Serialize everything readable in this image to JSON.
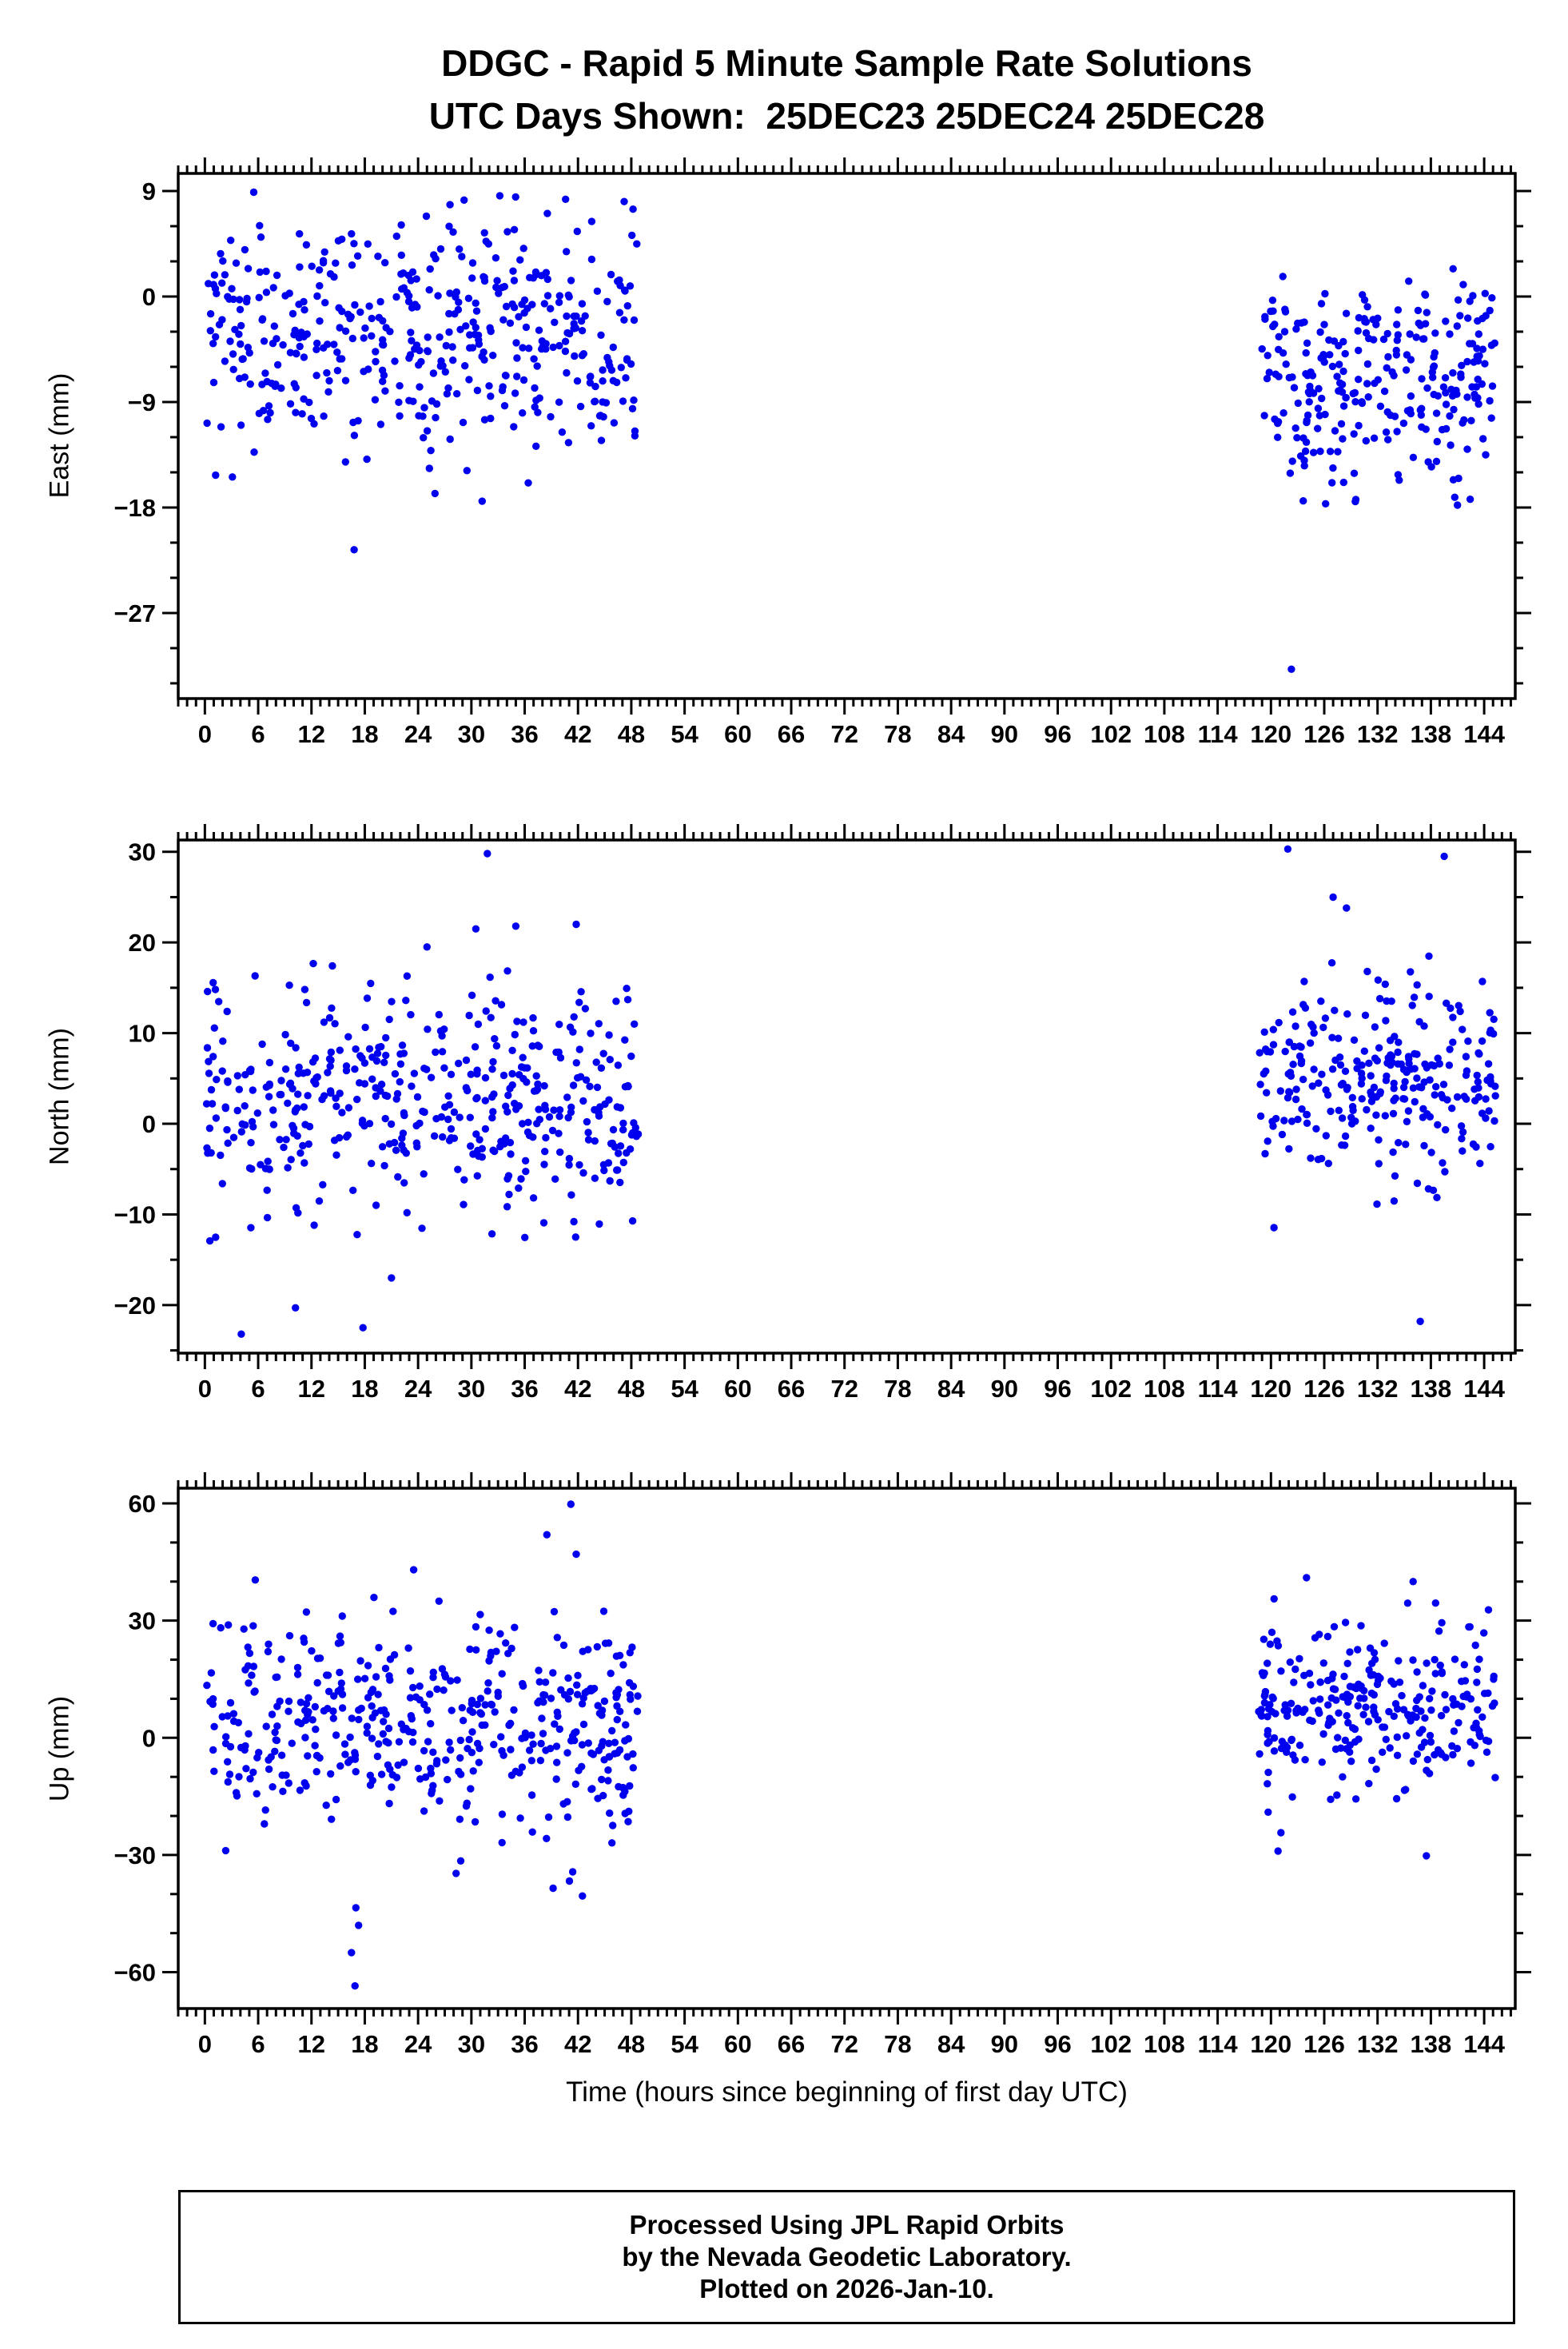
{
  "title": {
    "line1": "DDGC - Rapid 5 Minute Sample Rate Solutions",
    "line2": "UTC Days Shown:  25DEC23 25DEC24 25DEC28"
  },
  "xlabel": "Time (hours since beginning of first day UTC)",
  "footer": {
    "line1": "Processed Using JPL Rapid Orbits",
    "line2": "by the Nevada Geodetic Laboratory.",
    "line3": "Plotted on 2026-Jan-10."
  },
  "colors": {
    "point": "#0000ee",
    "axis": "#000000",
    "background": "#ffffff"
  },
  "chart_data": [
    {
      "type": "scatter",
      "name": "east",
      "ylabel": "East (mm)",
      "xlim": [
        -3,
        147.5
      ],
      "ylim": [
        -34.3,
        10.5
      ],
      "xticks": [
        0,
        6,
        12,
        18,
        24,
        30,
        36,
        42,
        48,
        54,
        60,
        66,
        72,
        78,
        84,
        90,
        96,
        102,
        108,
        114,
        120,
        126,
        132,
        138,
        144
      ],
      "xtick_minor_step": 1,
      "yticks": [
        9,
        0,
        -9,
        -18,
        -27
      ],
      "ytick_minor_step": 3,
      "point_color": "#0000ee",
      "clusters": [
        {
          "x_range": [
            0.2,
            48.8
          ],
          "n": 450,
          "mean": -3.0,
          "std": 5.0,
          "y_range": [
            -17.5,
            8.5
          ],
          "seed": 101
        },
        {
          "x_range": [
            118.6,
            145.3
          ],
          "n": 270,
          "mean": -7.2,
          "std": 4.4,
          "y_range": [
            -18.0,
            3.0
          ],
          "seed": 102
        }
      ],
      "outliers": [
        [
          16.8,
          -21.6
        ],
        [
          122.3,
          -31.8
        ],
        [
          5.5,
          8.9
        ],
        [
          33.2,
          8.6
        ],
        [
          40.6,
          8.3
        ],
        [
          47.2,
          8.1
        ],
        [
          3.1,
          -15.4
        ],
        [
          25.9,
          -16.8
        ],
        [
          36.4,
          -15.9
        ],
        [
          141.0,
          -17.8
        ],
        [
          129.5,
          -17.5
        ]
      ]
    },
    {
      "type": "scatter",
      "name": "north",
      "ylabel": "North (mm)",
      "xlim": [
        -3,
        147.5
      ],
      "ylim": [
        -25.3,
        31.3
      ],
      "xticks": [
        0,
        6,
        12,
        18,
        24,
        30,
        36,
        42,
        48,
        54,
        60,
        66,
        72,
        78,
        84,
        90,
        96,
        102,
        108,
        114,
        120,
        126,
        132,
        138,
        144
      ],
      "xtick_minor_step": 1,
      "yticks": [
        30,
        20,
        10,
        0,
        -10,
        -20
      ],
      "ytick_minor_step": 5,
      "point_color": "#0000ee",
      "clusters": [
        {
          "x_range": [
            0.2,
            48.8
          ],
          "n": 450,
          "mean": 2.8,
          "std": 6.2,
          "y_range": [
            -16.5,
            18.5
          ],
          "seed": 201
        },
        {
          "x_range": [
            118.6,
            145.3
          ],
          "n": 270,
          "mean": 5.2,
          "std": 5.5,
          "y_range": [
            -13.5,
            20.5
          ],
          "seed": 202
        }
      ],
      "outliers": [
        [
          31.8,
          29.8
        ],
        [
          41.8,
          22.0
        ],
        [
          35.0,
          21.8
        ],
        [
          30.5,
          21.5
        ],
        [
          25.0,
          19.5
        ],
        [
          10.2,
          -20.3
        ],
        [
          17.8,
          -22.5
        ],
        [
          4.1,
          -23.2
        ],
        [
          21.0,
          -17.0
        ],
        [
          121.9,
          30.3
        ],
        [
          139.5,
          29.5
        ],
        [
          127.0,
          25.0
        ],
        [
          128.5,
          23.8
        ],
        [
          136.8,
          -21.8
        ]
      ]
    },
    {
      "type": "scatter",
      "name": "up",
      "ylabel": "Up (mm)",
      "xlim": [
        -3,
        147.5
      ],
      "ylim": [
        -69.3,
        63.9
      ],
      "xticks": [
        0,
        6,
        12,
        18,
        24,
        30,
        36,
        42,
        48,
        54,
        60,
        66,
        72,
        78,
        84,
        90,
        96,
        102,
        108,
        114,
        120,
        126,
        132,
        138,
        144
      ],
      "xtick_minor_step": 1,
      "yticks": [
        60,
        30,
        0,
        -30,
        -60
      ],
      "ytick_minor_step": 10,
      "point_color": "#0000ee",
      "clusters": [
        {
          "x_range": [
            0.2,
            48.8
          ],
          "n": 450,
          "mean": 4.0,
          "std": 13.0,
          "y_range": [
            -38.0,
            42.0
          ],
          "seed": 301
        },
        {
          "x_range": [
            118.6,
            145.3
          ],
          "n": 270,
          "mean": 8.0,
          "std": 11.0,
          "y_range": [
            -28.0,
            38.0
          ],
          "seed": 302
        }
      ],
      "outliers": [
        [
          16.5,
          -55.0
        ],
        [
          16.9,
          -63.5
        ],
        [
          17.3,
          -48.0
        ],
        [
          17.0,
          -43.5
        ],
        [
          41.2,
          59.8
        ],
        [
          38.5,
          52.0
        ],
        [
          41.8,
          47.0
        ],
        [
          23.5,
          43.0
        ],
        [
          39.2,
          -38.5
        ],
        [
          42.5,
          -40.5
        ],
        [
          28.8,
          -31.5
        ],
        [
          120.8,
          -29.0
        ],
        [
          137.5,
          -30.2
        ],
        [
          124.0,
          41.0
        ],
        [
          136.0,
          40.0
        ]
      ]
    }
  ]
}
